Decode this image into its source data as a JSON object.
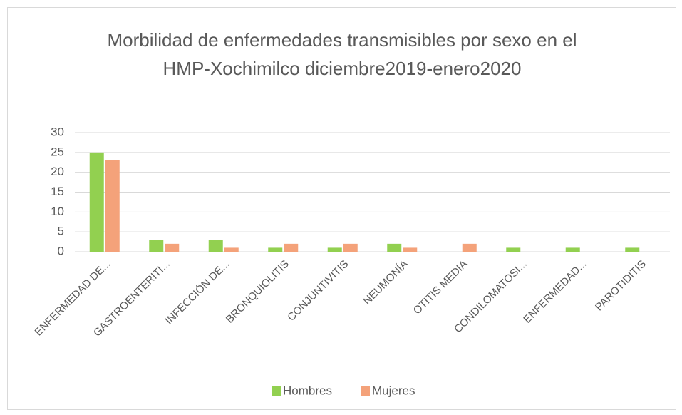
{
  "chart_data": {
    "type": "bar",
    "title": [
      "Morbilidad de enfermedades transmisibles por sexo en el",
      "HMP-Xochimilco diciembre2019-enero2020"
    ],
    "categories": [
      "ENFERMEDAD DE...",
      "GASTROENTERITI...",
      "INFECCIÓN DE...",
      "BRONQUIOLITIS",
      "CONJUNTIVITIS",
      "NEUMONÍA",
      "OTITIS MEDIA",
      "CONDILOMATOSI...",
      "ENFERMEDAD...",
      "PAROTIDITIS"
    ],
    "series": [
      {
        "name": "Hombres",
        "color": "#92d050",
        "values": [
          25,
          3,
          3,
          1,
          1,
          2,
          0,
          1,
          1,
          1
        ]
      },
      {
        "name": "Mujeres",
        "color": "#f4a27a",
        "values": [
          23,
          2,
          1,
          2,
          2,
          1,
          2,
          0,
          0,
          0
        ]
      }
    ],
    "ylim": [
      0,
      30
    ],
    "yticks": [
      0,
      5,
      10,
      15,
      20,
      25,
      30
    ],
    "grid": true,
    "legend": "bottom"
  }
}
